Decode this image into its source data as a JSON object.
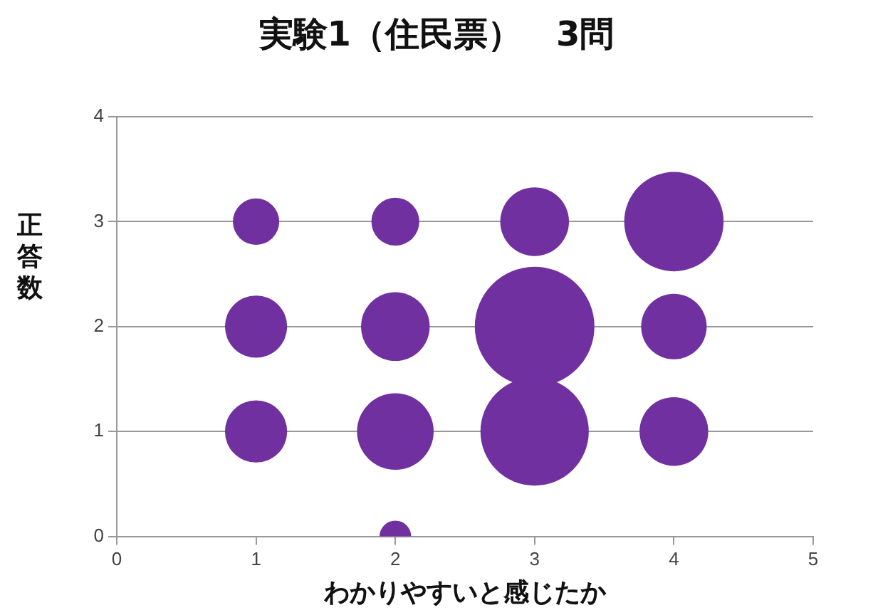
{
  "chart_data": {
    "type": "bubble",
    "title": "実験1（住民票）　3問",
    "xlabel": "わかりやすいと感じたか",
    "ylabel": "正答数",
    "x": [
      1,
      1,
      1,
      2,
      2,
      2,
      2,
      3,
      3,
      3,
      4,
      4,
      4
    ],
    "values": [
      3,
      2,
      1,
      3,
      2,
      1,
      0,
      3,
      2,
      1,
      3,
      2,
      1
    ],
    "sizes": [
      0.15,
      0.27,
      0.27,
      0.16,
      0.33,
      0.41,
      0.07,
      0.33,
      1,
      0.82,
      0.69,
      0.3,
      0.33
    ],
    "color": "#7030a0",
    "xlim": [
      0,
      5
    ],
    "xticks": [
      0,
      1,
      2,
      3,
      4,
      5
    ],
    "ylim": [
      0,
      4
    ],
    "yticks": [
      0,
      1,
      2,
      3,
      4
    ],
    "grid": "y",
    "legend": false
  }
}
